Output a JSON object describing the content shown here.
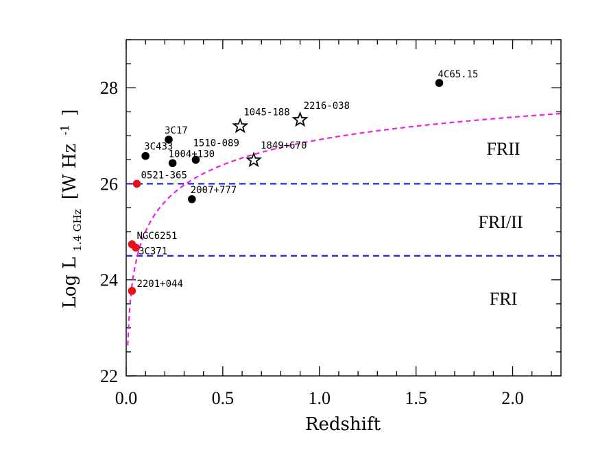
{
  "chart_data": {
    "type": "scatter",
    "title": "",
    "xlabel": "Redshift",
    "ylabel": {
      "main": "Log  L",
      "sub": "1.4 GHz",
      "unit": "[W Hz",
      "exp": "-1",
      "close": "]"
    },
    "xlim": [
      0.0,
      2.25
    ],
    "ylim": [
      22.0,
      29.0
    ],
    "x_ticks": [
      {
        "value": 0.0,
        "label": "0.0"
      },
      {
        "value": 0.5,
        "label": "0.5"
      },
      {
        "value": 1.0,
        "label": "1.0"
      },
      {
        "value": 1.5,
        "label": "1.5"
      },
      {
        "value": 2.0,
        "label": "2.0"
      }
    ],
    "y_ticks": [
      {
        "value": 22,
        "label": "22"
      },
      {
        "value": 24,
        "label": "24"
      },
      {
        "value": 26,
        "label": "26"
      },
      {
        "value": 28,
        "label": "28"
      }
    ],
    "grid": false,
    "series": [
      {
        "marker": "circle",
        "color": "#000000",
        "points": [
          {
            "x": 1.62,
            "y": 28.1,
            "label": "4C65.15"
          },
          {
            "x": 0.22,
            "y": 26.92,
            "label": "3C17"
          },
          {
            "x": 0.1,
            "y": 26.58,
            "label": "3C433"
          },
          {
            "x": 0.24,
            "y": 26.43,
            "label": "1004+130"
          },
          {
            "x": 0.36,
            "y": 26.5,
            "label": "1510-089"
          },
          {
            "x": 0.34,
            "y": 25.68,
            "label": "2007+777"
          }
        ]
      },
      {
        "marker": "star",
        "color": "#000000",
        "points": [
          {
            "x": 0.59,
            "y": 27.2,
            "label": "1045-188"
          },
          {
            "x": 0.9,
            "y": 27.33,
            "label": "2216-038"
          },
          {
            "x": 0.66,
            "y": 26.49,
            "label": "1849+670"
          }
        ]
      },
      {
        "marker": "circle",
        "color": "#e8101a",
        "points": [
          {
            "x": 0.055,
            "y": 26.0,
            "label": "0521-365"
          },
          {
            "x": 0.03,
            "y": 24.74,
            "label": "NGC6251"
          },
          {
            "x": 0.05,
            "y": 24.67,
            "label": "3C371"
          },
          {
            "x": 0.03,
            "y": 23.77,
            "label": "2201+044"
          }
        ]
      }
    ],
    "hlines": [
      {
        "y": 26.0,
        "color": "#1a1ae6",
        "style": "dashed"
      },
      {
        "y": 24.5,
        "color": "#1a1ae6",
        "style": "dashed"
      }
    ],
    "curve": {
      "color": "#ee1ee6",
      "style": "dashed",
      "description": "flux limit"
    },
    "region_labels": [
      "FRII",
      "FRI/II",
      "FRI"
    ]
  }
}
